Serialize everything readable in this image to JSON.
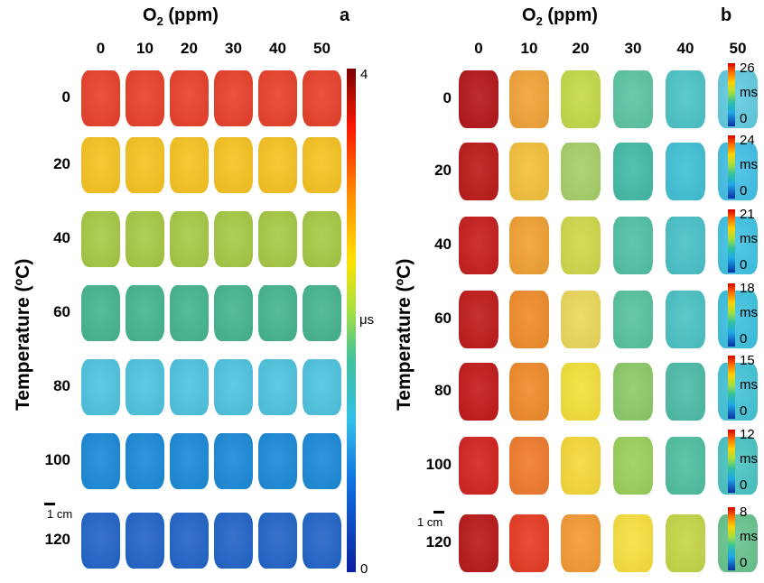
{
  "panel_a": {
    "letter": "a",
    "x_title_main": "O",
    "x_title_sub": "2",
    "x_title_rest": " (ppm)",
    "x_labels": [
      "0",
      "10",
      "20",
      "30",
      "40",
      "50"
    ],
    "y_labels": [
      "0",
      "20",
      "40",
      "60",
      "80",
      "100",
      "120"
    ],
    "y_title": "Temperature (ºC)",
    "colorbar": {
      "max": "4",
      "min": "0",
      "unit": "μs"
    },
    "scale_label": "1 cm",
    "row_colors": [
      "#e8402a",
      "#f7c321",
      "#a6c944",
      "#45b58e",
      "#4ec4e0",
      "#1a8ad8",
      "#2064c8"
    ]
  },
  "panel_b": {
    "letter": "b",
    "x_title_main": "O",
    "x_title_sub": "2",
    "x_title_rest": " (ppm)",
    "x_labels": [
      "0",
      "10",
      "20",
      "30",
      "40",
      "50"
    ],
    "y_labels": [
      "0",
      "20",
      "40",
      "60",
      "80",
      "100",
      "120"
    ],
    "y_title": "Temperature (ºC)",
    "colorbars": [
      {
        "max": "26",
        "unit": "ms",
        "min": "0"
      },
      {
        "max": "24",
        "unit": "ms",
        "min": "0"
      },
      {
        "max": "21",
        "unit": "ms",
        "min": "0"
      },
      {
        "max": "18",
        "unit": "ms",
        "min": "0"
      },
      {
        "max": "15",
        "unit": "ms",
        "min": "0"
      },
      {
        "max": "12",
        "unit": "ms",
        "min": "0"
      },
      {
        "max": "8",
        "unit": "ms",
        "min": "0"
      }
    ],
    "scale_label": "1 cm",
    "tile_colors": [
      [
        "#b4161a",
        "#f2a236",
        "#c5d948",
        "#5cc4a4",
        "#4cc4c8",
        "#62cbe0"
      ],
      [
        "#bb1a18",
        "#f3c03a",
        "#a6cf68",
        "#42bba8",
        "#40c0d6",
        "#43c0e6"
      ],
      [
        "#c51d1c",
        "#f2a032",
        "#cfd84a",
        "#52c1a4",
        "#49c1c8",
        "#3fc3e4"
      ],
      [
        "#c01a1a",
        "#f08b2a",
        "#ecd85a",
        "#56c39e",
        "#4bc2c4",
        "#3dc2e0"
      ],
      [
        "#c2191a",
        "#f08a2a",
        "#f4e03a",
        "#8cca68",
        "#4dbca8",
        "#45c4d8"
      ],
      [
        "#d2231f",
        "#f07a2c",
        "#f6d838",
        "#9ad05a",
        "#4fbfa0",
        "#4ac4c4"
      ],
      [
        "#b81818",
        "#e63a22",
        "#f49a34",
        "#f8e03e",
        "#c4d646",
        "#68c48e"
      ]
    ]
  }
}
